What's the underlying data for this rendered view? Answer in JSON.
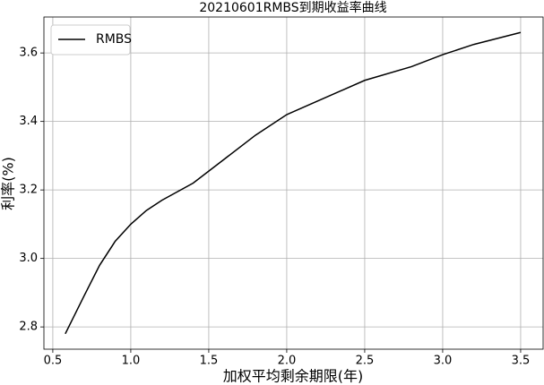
{
  "chart_data": {
    "type": "line",
    "title": "20210601RMBS到期收益率曲线",
    "x_label": "加权平均剩余期限(年)",
    "y_label": "利率(%)",
    "x": [
      0.58,
      0.7,
      0.8,
      0.9,
      1.0,
      1.1,
      1.2,
      1.4,
      1.6,
      1.8,
      2.0,
      2.2,
      2.5,
      2.8,
      3.0,
      3.2,
      3.5
    ],
    "series": [
      {
        "name": "RMBS",
        "color": "#000000",
        "values": [
          2.78,
          2.89,
          2.98,
          3.05,
          3.1,
          3.14,
          3.17,
          3.22,
          3.29,
          3.36,
          3.42,
          3.46,
          3.52,
          3.56,
          3.595,
          3.625,
          3.66
        ]
      }
    ],
    "xlim": [
      0.443,
      3.644
    ],
    "ylim": [
      2.735,
      3.705
    ],
    "xticks": [
      0.5,
      {
        "value": 1,
        "label": "1.0"
      },
      1.5,
      {
        "value": 2,
        "label": "2.0"
      },
      2.5,
      {
        "value": 3,
        "label": "3.0"
      },
      3.5
    ],
    "yticks": [
      2.8,
      {
        "value": 3,
        "label": "3.0"
      },
      3.2,
      3.4,
      3.6
    ],
    "grid": true,
    "legend": "upper-left"
  }
}
